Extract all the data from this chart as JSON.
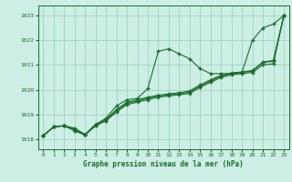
{
  "xlabel": "Graphe pression niveau de la mer (hPa)",
  "ylim": [
    1017.6,
    1023.4
  ],
  "xlim": [
    -0.5,
    23.5
  ],
  "yticks": [
    1018,
    1019,
    1020,
    1021,
    1022,
    1023
  ],
  "xticks": [
    0,
    1,
    2,
    3,
    4,
    5,
    6,
    7,
    8,
    9,
    10,
    11,
    12,
    13,
    14,
    15,
    16,
    17,
    18,
    19,
    20,
    21,
    22,
    23
  ],
  "background_color": "#cceee4",
  "grid_color": "#99ccbb",
  "line_color": "#1a6b2a",
  "series": [
    [
      1018.15,
      1018.5,
      1018.55,
      1018.45,
      1018.2,
      1018.6,
      1018.85,
      1019.35,
      1019.6,
      1019.65,
      1020.05,
      1021.55,
      1021.65,
      1021.45,
      1021.25,
      1020.85,
      1020.65,
      1020.65,
      1020.65,
      1020.7,
      1022.0,
      1022.5,
      1022.65,
      1023.0
    ],
    [
      1018.15,
      1018.5,
      1018.55,
      1018.35,
      1018.18,
      1018.55,
      1018.75,
      1019.15,
      1019.45,
      1019.55,
      1019.65,
      1019.75,
      1019.8,
      1019.85,
      1019.9,
      1020.15,
      1020.35,
      1020.55,
      1020.65,
      1020.7,
      1020.75,
      1021.1,
      1021.15,
      1023.0
    ],
    [
      1018.15,
      1018.5,
      1018.55,
      1018.35,
      1018.18,
      1018.55,
      1018.75,
      1019.1,
      1019.4,
      1019.5,
      1019.6,
      1019.7,
      1019.75,
      1019.8,
      1019.85,
      1020.1,
      1020.3,
      1020.5,
      1020.6,
      1020.65,
      1020.7,
      1021.0,
      1021.05,
      1023.0
    ],
    [
      1018.15,
      1018.5,
      1018.55,
      1018.4,
      1018.18,
      1018.6,
      1018.8,
      1019.2,
      1019.5,
      1019.6,
      1019.7,
      1019.78,
      1019.83,
      1019.88,
      1019.95,
      1020.2,
      1020.4,
      1020.58,
      1020.68,
      1020.72,
      1020.78,
      1021.12,
      1021.18,
      1023.0
    ]
  ]
}
